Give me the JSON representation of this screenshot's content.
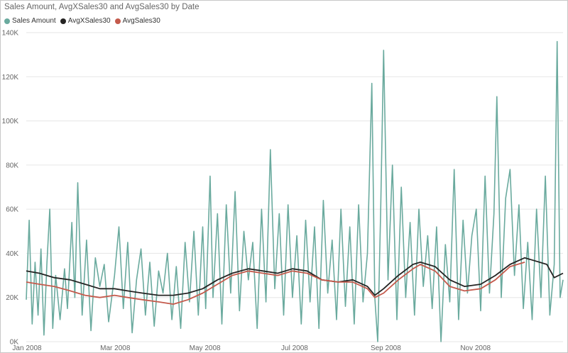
{
  "chart_data": {
    "type": "line",
    "title": "Sales Amount, AvgXSales30 and AvgSales30 by Date",
    "xlabel": "",
    "ylabel": "",
    "ylim": [
      0,
      140000
    ],
    "yticks": [
      {
        "value": 0,
        "label": "0K"
      },
      {
        "value": 20000,
        "label": "20K"
      },
      {
        "value": 40000,
        "label": "40K"
      },
      {
        "value": 60000,
        "label": "60K"
      },
      {
        "value": 80000,
        "label": "80K"
      },
      {
        "value": 100000,
        "label": "100K"
      },
      {
        "value": 120000,
        "label": "120K"
      },
      {
        "value": 140000,
        "label": "140K"
      }
    ],
    "xlim": [
      "2008-01-01",
      "2008-12-31"
    ],
    "xticks": [
      {
        "value": "2008-01-01",
        "label": "Jan 2008"
      },
      {
        "value": "2008-03-01",
        "label": "Mar 2008"
      },
      {
        "value": "2008-05-01",
        "label": "May 2008"
      },
      {
        "value": "2008-07-01",
        "label": "Jul 2008"
      },
      {
        "value": "2008-09-01",
        "label": "Sep 2008"
      },
      {
        "value": "2008-11-01",
        "label": "Nov 2008"
      }
    ],
    "grid": true,
    "legend_position": "top-left",
    "series": [
      {
        "name": "Sales Amount",
        "color": "#6aaa9e",
        "points": [
          [
            "2008-01-01",
            19000
          ],
          [
            "2008-01-03",
            55000
          ],
          [
            "2008-01-05",
            8000
          ],
          [
            "2008-01-07",
            36000
          ],
          [
            "2008-01-09",
            12000
          ],
          [
            "2008-01-11",
            42000
          ],
          [
            "2008-01-13",
            3000
          ],
          [
            "2008-01-15",
            35000
          ],
          [
            "2008-01-17",
            60000
          ],
          [
            "2008-01-19",
            6000
          ],
          [
            "2008-01-21",
            30000
          ],
          [
            "2008-01-24",
            10000
          ],
          [
            "2008-01-27",
            33000
          ],
          [
            "2008-01-29",
            15000
          ],
          [
            "2008-02-01",
            54000
          ],
          [
            "2008-02-03",
            20000
          ],
          [
            "2008-02-05",
            72000
          ],
          [
            "2008-02-08",
            12000
          ],
          [
            "2008-02-11",
            46000
          ],
          [
            "2008-02-14",
            5000
          ],
          [
            "2008-02-17",
            38000
          ],
          [
            "2008-02-20",
            25000
          ],
          [
            "2008-02-23",
            35000
          ],
          [
            "2008-02-26",
            9000
          ],
          [
            "2008-03-01",
            30000
          ],
          [
            "2008-03-04",
            52000
          ],
          [
            "2008-03-07",
            15000
          ],
          [
            "2008-03-10",
            45000
          ],
          [
            "2008-03-13",
            4000
          ],
          [
            "2008-03-16",
            28000
          ],
          [
            "2008-03-19",
            42000
          ],
          [
            "2008-03-22",
            12000
          ],
          [
            "2008-03-25",
            36000
          ],
          [
            "2008-03-28",
            7000
          ],
          [
            "2008-03-31",
            32000
          ],
          [
            "2008-04-03",
            22000
          ],
          [
            "2008-04-06",
            40000
          ],
          [
            "2008-04-09",
            10000
          ],
          [
            "2008-04-12",
            34000
          ],
          [
            "2008-04-15",
            6000
          ],
          [
            "2008-04-18",
            45000
          ],
          [
            "2008-04-21",
            18000
          ],
          [
            "2008-04-24",
            50000
          ],
          [
            "2008-04-27",
            12000
          ],
          [
            "2008-04-30",
            52000
          ],
          [
            "2008-05-02",
            15000
          ],
          [
            "2008-05-05",
            75000
          ],
          [
            "2008-05-07",
            20000
          ],
          [
            "2008-05-10",
            58000
          ],
          [
            "2008-05-13",
            8000
          ],
          [
            "2008-05-16",
            62000
          ],
          [
            "2008-05-19",
            22000
          ],
          [
            "2008-05-22",
            68000
          ],
          [
            "2008-05-25",
            14000
          ],
          [
            "2008-05-28",
            50000
          ],
          [
            "2008-05-31",
            28000
          ],
          [
            "2008-06-03",
            45000
          ],
          [
            "2008-06-06",
            6000
          ],
          [
            "2008-06-09",
            60000
          ],
          [
            "2008-06-12",
            18000
          ],
          [
            "2008-06-15",
            87000
          ],
          [
            "2008-06-18",
            24000
          ],
          [
            "2008-06-21",
            58000
          ],
          [
            "2008-06-24",
            12000
          ],
          [
            "2008-06-27",
            62000
          ],
          [
            "2008-06-30",
            20000
          ],
          [
            "2008-07-03",
            48000
          ],
          [
            "2008-07-06",
            8000
          ],
          [
            "2008-07-09",
            55000
          ],
          [
            "2008-07-12",
            18000
          ],
          [
            "2008-07-15",
            52000
          ],
          [
            "2008-07-18",
            6000
          ],
          [
            "2008-07-21",
            64000
          ],
          [
            "2008-07-24",
            22000
          ],
          [
            "2008-07-27",
            46000
          ],
          [
            "2008-07-30",
            10000
          ],
          [
            "2008-08-02",
            60000
          ],
          [
            "2008-08-05",
            16000
          ],
          [
            "2008-08-08",
            52000
          ],
          [
            "2008-08-11",
            8000
          ],
          [
            "2008-08-14",
            62000
          ],
          [
            "2008-08-17",
            18000
          ],
          [
            "2008-08-20",
            40000
          ],
          [
            "2008-08-23",
            117000
          ],
          [
            "2008-08-25",
            20000
          ],
          [
            "2008-08-27",
            0
          ],
          [
            "2008-08-29",
            60000
          ],
          [
            "2008-08-31",
            132000
          ],
          [
            "2008-09-03",
            28000
          ],
          [
            "2008-09-06",
            80000
          ],
          [
            "2008-09-09",
            10000
          ],
          [
            "2008-09-12",
            70000
          ],
          [
            "2008-09-15",
            20000
          ],
          [
            "2008-09-18",
            54000
          ],
          [
            "2008-09-21",
            12000
          ],
          [
            "2008-09-24",
            60000
          ],
          [
            "2008-09-27",
            25000
          ],
          [
            "2008-09-30",
            48000
          ],
          [
            "2008-10-03",
            15000
          ],
          [
            "2008-10-06",
            52000
          ],
          [
            "2008-10-09",
            0
          ],
          [
            "2008-10-12",
            44000
          ],
          [
            "2008-10-15",
            18000
          ],
          [
            "2008-10-18",
            78000
          ],
          [
            "2008-10-21",
            10000
          ],
          [
            "2008-10-24",
            55000
          ],
          [
            "2008-10-27",
            22000
          ],
          [
            "2008-10-30",
            48000
          ],
          [
            "2008-11-02",
            60000
          ],
          [
            "2008-11-05",
            14000
          ],
          [
            "2008-11-08",
            75000
          ],
          [
            "2008-11-11",
            22000
          ],
          [
            "2008-11-14",
            58000
          ],
          [
            "2008-11-16",
            111000
          ],
          [
            "2008-11-19",
            20000
          ],
          [
            "2008-11-22",
            65000
          ],
          [
            "2008-11-25",
            78000
          ],
          [
            "2008-11-28",
            30000
          ],
          [
            "2008-12-01",
            62000
          ],
          [
            "2008-12-04",
            15000
          ],
          [
            "2008-12-07",
            45000
          ],
          [
            "2008-12-10",
            10000
          ],
          [
            "2008-12-13",
            60000
          ],
          [
            "2008-12-16",
            20000
          ],
          [
            "2008-12-19",
            75000
          ],
          [
            "2008-12-22",
            12000
          ],
          [
            "2008-12-25",
            35000
          ],
          [
            "2008-12-27",
            136000
          ],
          [
            "2008-12-29",
            20000
          ],
          [
            "2008-12-31",
            28000
          ]
        ]
      },
      {
        "name": "AvgXSales30",
        "color": "#252423",
        "points": [
          [
            "2008-01-01",
            32000
          ],
          [
            "2008-01-10",
            31000
          ],
          [
            "2008-01-20",
            29000
          ],
          [
            "2008-01-31",
            28000
          ],
          [
            "2008-02-10",
            26000
          ],
          [
            "2008-02-20",
            24000
          ],
          [
            "2008-03-01",
            24000
          ],
          [
            "2008-03-10",
            23000
          ],
          [
            "2008-03-20",
            22000
          ],
          [
            "2008-03-31",
            21000
          ],
          [
            "2008-04-10",
            21000
          ],
          [
            "2008-04-20",
            22000
          ],
          [
            "2008-04-30",
            24000
          ],
          [
            "2008-05-10",
            28000
          ],
          [
            "2008-05-20",
            31000
          ],
          [
            "2008-05-31",
            33000
          ],
          [
            "2008-06-10",
            32000
          ],
          [
            "2008-06-20",
            31000
          ],
          [
            "2008-06-30",
            33000
          ],
          [
            "2008-07-10",
            32000
          ],
          [
            "2008-07-20",
            28000
          ],
          [
            "2008-07-31",
            27000
          ],
          [
            "2008-08-10",
            28000
          ],
          [
            "2008-08-20",
            25000
          ],
          [
            "2008-08-25",
            21000
          ],
          [
            "2008-08-31",
            24000
          ],
          [
            "2008-09-10",
            30000
          ],
          [
            "2008-09-20",
            35000
          ],
          [
            "2008-09-25",
            36000
          ],
          [
            "2008-10-05",
            34000
          ],
          [
            "2008-10-15",
            28000
          ],
          [
            "2008-10-25",
            25000
          ],
          [
            "2008-11-05",
            26000
          ],
          [
            "2008-11-15",
            30000
          ],
          [
            "2008-11-25",
            35000
          ],
          [
            "2008-12-05",
            38000
          ],
          [
            "2008-12-10",
            37000
          ],
          [
            "2008-12-20",
            35000
          ],
          [
            "2008-12-25",
            29000
          ],
          [
            "2008-12-31",
            31000
          ]
        ]
      },
      {
        "name": "AvgSales30",
        "color": "#c45a4c",
        "points": [
          [
            "2008-01-01",
            27000
          ],
          [
            "2008-01-10",
            26000
          ],
          [
            "2008-01-20",
            25000
          ],
          [
            "2008-01-31",
            23000
          ],
          [
            "2008-02-10",
            21000
          ],
          [
            "2008-02-20",
            20000
          ],
          [
            "2008-03-01",
            21000
          ],
          [
            "2008-03-10",
            20000
          ],
          [
            "2008-03-20",
            19000
          ],
          [
            "2008-03-31",
            18000
          ],
          [
            "2008-04-10",
            17000
          ],
          [
            "2008-04-20",
            19000
          ],
          [
            "2008-04-30",
            22000
          ],
          [
            "2008-05-10",
            26000
          ],
          [
            "2008-05-20",
            30000
          ],
          [
            "2008-05-31",
            32000
          ],
          [
            "2008-06-10",
            31000
          ],
          [
            "2008-06-20",
            30000
          ],
          [
            "2008-06-30",
            32000
          ],
          [
            "2008-07-10",
            31000
          ],
          [
            "2008-07-20",
            28000
          ],
          [
            "2008-07-31",
            27000
          ],
          [
            "2008-08-10",
            27000
          ],
          [
            "2008-08-20",
            24000
          ],
          [
            "2008-08-25",
            20000
          ],
          [
            "2008-08-31",
            22000
          ],
          [
            "2008-09-10",
            28000
          ],
          [
            "2008-09-20",
            33000
          ],
          [
            "2008-09-25",
            35000
          ],
          [
            "2008-10-05",
            32000
          ],
          [
            "2008-10-15",
            25000
          ],
          [
            "2008-10-25",
            23000
          ],
          [
            "2008-11-05",
            24000
          ],
          [
            "2008-11-15",
            28000
          ],
          [
            "2008-11-25",
            34000
          ],
          [
            "2008-12-05",
            36000
          ]
        ]
      }
    ]
  }
}
